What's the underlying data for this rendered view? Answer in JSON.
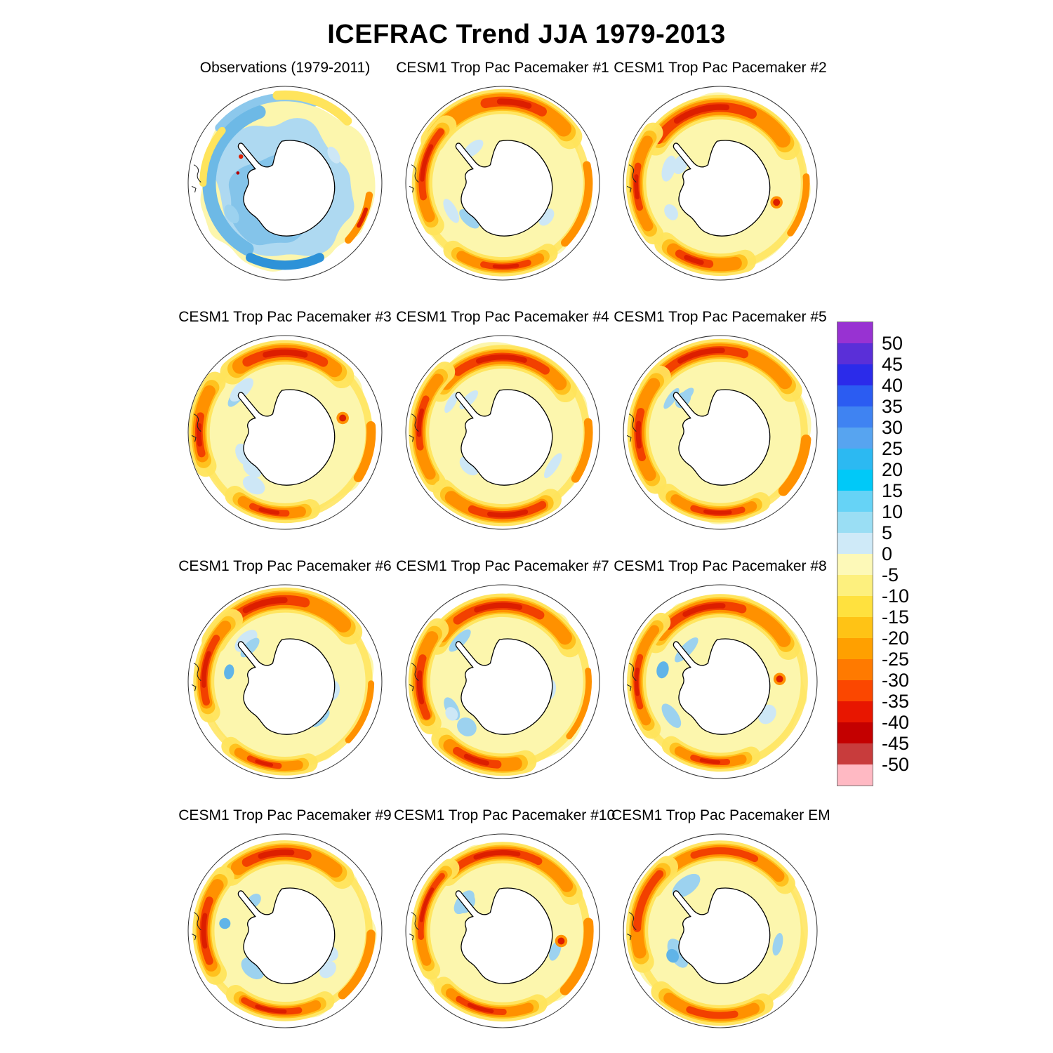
{
  "title": "ICEFRAC Trend JJA 1979-2013",
  "panels": [
    {
      "title": "Observations (1979-2011)",
      "variant": "obs"
    },
    {
      "title": "CESM1 Trop Pac Pacemaker #1",
      "variant": "model"
    },
    {
      "title": "CESM1 Trop Pac Pacemaker #2",
      "variant": "model"
    },
    {
      "title": "CESM1 Trop Pac Pacemaker #3",
      "variant": "model"
    },
    {
      "title": "CESM1 Trop Pac Pacemaker #4",
      "variant": "model"
    },
    {
      "title": "CESM1 Trop Pac Pacemaker #5",
      "variant": "model"
    },
    {
      "title": "CESM1 Trop Pac Pacemaker #6",
      "variant": "model"
    },
    {
      "title": "CESM1 Trop Pac Pacemaker #7",
      "variant": "model"
    },
    {
      "title": "CESM1 Trop Pac Pacemaker #8",
      "variant": "model"
    },
    {
      "title": "CESM1 Trop Pac Pacemaker #9",
      "variant": "model"
    },
    {
      "title": "CESM1 Trop Pac Pacemaker #10",
      "variant": "model"
    },
    {
      "title": "CESM1 Trop Pac Pacemaker EM",
      "variant": "em"
    }
  ],
  "colorbar": {
    "labels": [
      "50",
      "45",
      "40",
      "35",
      "30",
      "25",
      "20",
      "15",
      "10",
      "5",
      "0",
      "-5",
      "-10",
      "-15",
      "-20",
      "-25",
      "-30",
      "-35",
      "-40",
      "-45",
      "-50"
    ],
    "colors": [
      "#9832d2",
      "#5a2fd8",
      "#2b2bea",
      "#2b5cf2",
      "#3f83f2",
      "#57a4f0",
      "#2cb9f2",
      "#00c9f8",
      "#66d3f6",
      "#9adef4",
      "#cfeaf8",
      "#fdf9b8",
      "#fdf07e",
      "#ffe13e",
      "#ffc315",
      "#ffa000",
      "#ff7a00",
      "#fb4700",
      "#e81600",
      "#c40000",
      "#c83c3c",
      "#ffb9c3"
    ]
  },
  "map_palette": {
    "baseField": "#fcf6ad",
    "yellow": "#ffe45c",
    "gold": "#ffc21e",
    "orange": "#ff9100",
    "redOrange": "#f24000",
    "red": "#dc1e00",
    "darkRed": "#b40000",
    "blueLight": "#cde7f6",
    "blueMid": "#9cd2ef",
    "blueMed": "#60b4e8",
    "blueDeep": "#2d92d8",
    "continentFill": "#ffffff",
    "coast": "#000000"
  }
}
